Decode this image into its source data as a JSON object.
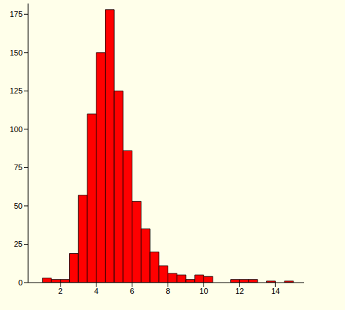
{
  "chart_data": {
    "type": "histogram",
    "bins": [
      1,
      1.5,
      2,
      2.5,
      3,
      3.5,
      4,
      4.5,
      5,
      5.5,
      6,
      6.5,
      7,
      7.5,
      8,
      8.5,
      9,
      9.5,
      10,
      10.5,
      11,
      11.5,
      12,
      12.5,
      13,
      13.5,
      14,
      14.5,
      15
    ],
    "values": [
      3,
      2,
      2,
      19,
      57,
      110,
      150,
      178,
      125,
      86,
      53,
      35,
      20,
      11,
      6,
      5,
      2,
      5,
      4,
      0,
      0,
      2,
      2,
      2,
      0,
      1,
      0,
      1
    ],
    "color": "#ff0000",
    "xlim": [
      0.2,
      15.6
    ],
    "xticks": [
      2,
      4,
      6,
      8,
      10,
      12,
      14
    ],
    "ylim": [
      0,
      182
    ],
    "yticks": [
      0,
      25,
      50,
      75,
      100,
      125,
      150,
      175
    ],
    "grid": false
  }
}
